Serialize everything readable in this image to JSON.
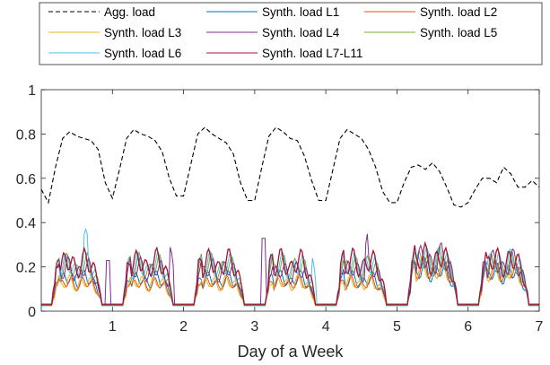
{
  "chart_data": {
    "type": "line",
    "title": "",
    "xlabel": "Day of a Week",
    "ylabel": "",
    "xlim": [
      0,
      7
    ],
    "ylim": [
      0,
      1
    ],
    "xticks": [
      1,
      2,
      3,
      4,
      5,
      6,
      7
    ],
    "xtick_labels": [
      "1",
      "2",
      "3",
      "4",
      "5",
      "6",
      "7"
    ],
    "yticks": [
      0,
      0.2,
      0.4,
      0.6,
      0.8,
      1
    ],
    "ytick_labels": [
      "0",
      "0.2",
      "0.4",
      "0.6",
      "0.8",
      "1"
    ],
    "grid": false,
    "legend_position": "top (outside plot, 3 columns)",
    "series": [
      {
        "name": "Agg. load",
        "color": "#000000",
        "style": "dashed",
        "x": [
          0,
          0.1,
          0.2,
          0.3,
          0.4,
          0.5,
          0.6,
          0.7,
          0.8,
          0.9,
          1,
          1.1,
          1.2,
          1.3,
          1.4,
          1.5,
          1.6,
          1.7,
          1.8,
          1.9,
          2,
          2.1,
          2.2,
          2.3,
          2.4,
          2.5,
          2.6,
          2.7,
          2.8,
          2.9,
          3,
          3.1,
          3.2,
          3.3,
          3.4,
          3.5,
          3.6,
          3.7,
          3.8,
          3.9,
          4,
          4.1,
          4.2,
          4.3,
          4.4,
          4.5,
          4.6,
          4.7,
          4.8,
          4.9,
          5,
          5.1,
          5.2,
          5.3,
          5.4,
          5.5,
          5.6,
          5.7,
          5.8,
          5.9,
          6,
          6.1,
          6.2,
          6.3,
          6.4,
          6.5,
          6.6,
          6.7,
          6.8,
          6.9,
          7
        ],
        "y": [
          0.55,
          0.49,
          0.65,
          0.78,
          0.81,
          0.79,
          0.78,
          0.77,
          0.73,
          0.58,
          0.51,
          0.64,
          0.78,
          0.82,
          0.8,
          0.79,
          0.77,
          0.72,
          0.6,
          0.52,
          0.52,
          0.66,
          0.8,
          0.83,
          0.8,
          0.78,
          0.76,
          0.71,
          0.58,
          0.5,
          0.5,
          0.65,
          0.79,
          0.83,
          0.81,
          0.78,
          0.77,
          0.7,
          0.59,
          0.5,
          0.5,
          0.64,
          0.78,
          0.82,
          0.8,
          0.78,
          0.73,
          0.65,
          0.54,
          0.49,
          0.49,
          0.58,
          0.65,
          0.66,
          0.64,
          0.67,
          0.63,
          0.56,
          0.48,
          0.47,
          0.49,
          0.55,
          0.6,
          0.6,
          0.58,
          0.65,
          0.62,
          0.56,
          0.56,
          0.59,
          0.56
        ]
      },
      {
        "name": "Synth. load L1",
        "color": "#0072bd",
        "x": [],
        "y": []
      },
      {
        "name": "Synth. load L2",
        "color": "#d95319",
        "x": [],
        "y": []
      },
      {
        "name": "Synth. load L3",
        "color": "#edb120",
        "x": [],
        "y": []
      },
      {
        "name": "Synth. load L4",
        "color": "#7e2f8e",
        "x": [],
        "y": []
      },
      {
        "name": "Synth. load L5",
        "color": "#77ac30",
        "x": [],
        "y": []
      },
      {
        "name": "Synth. load L6",
        "color": "#4dbeee",
        "x": [],
        "y": []
      },
      {
        "name": "Synth. load L7-L11",
        "color": "#a2142f",
        "x": [],
        "y": []
      }
    ]
  }
}
